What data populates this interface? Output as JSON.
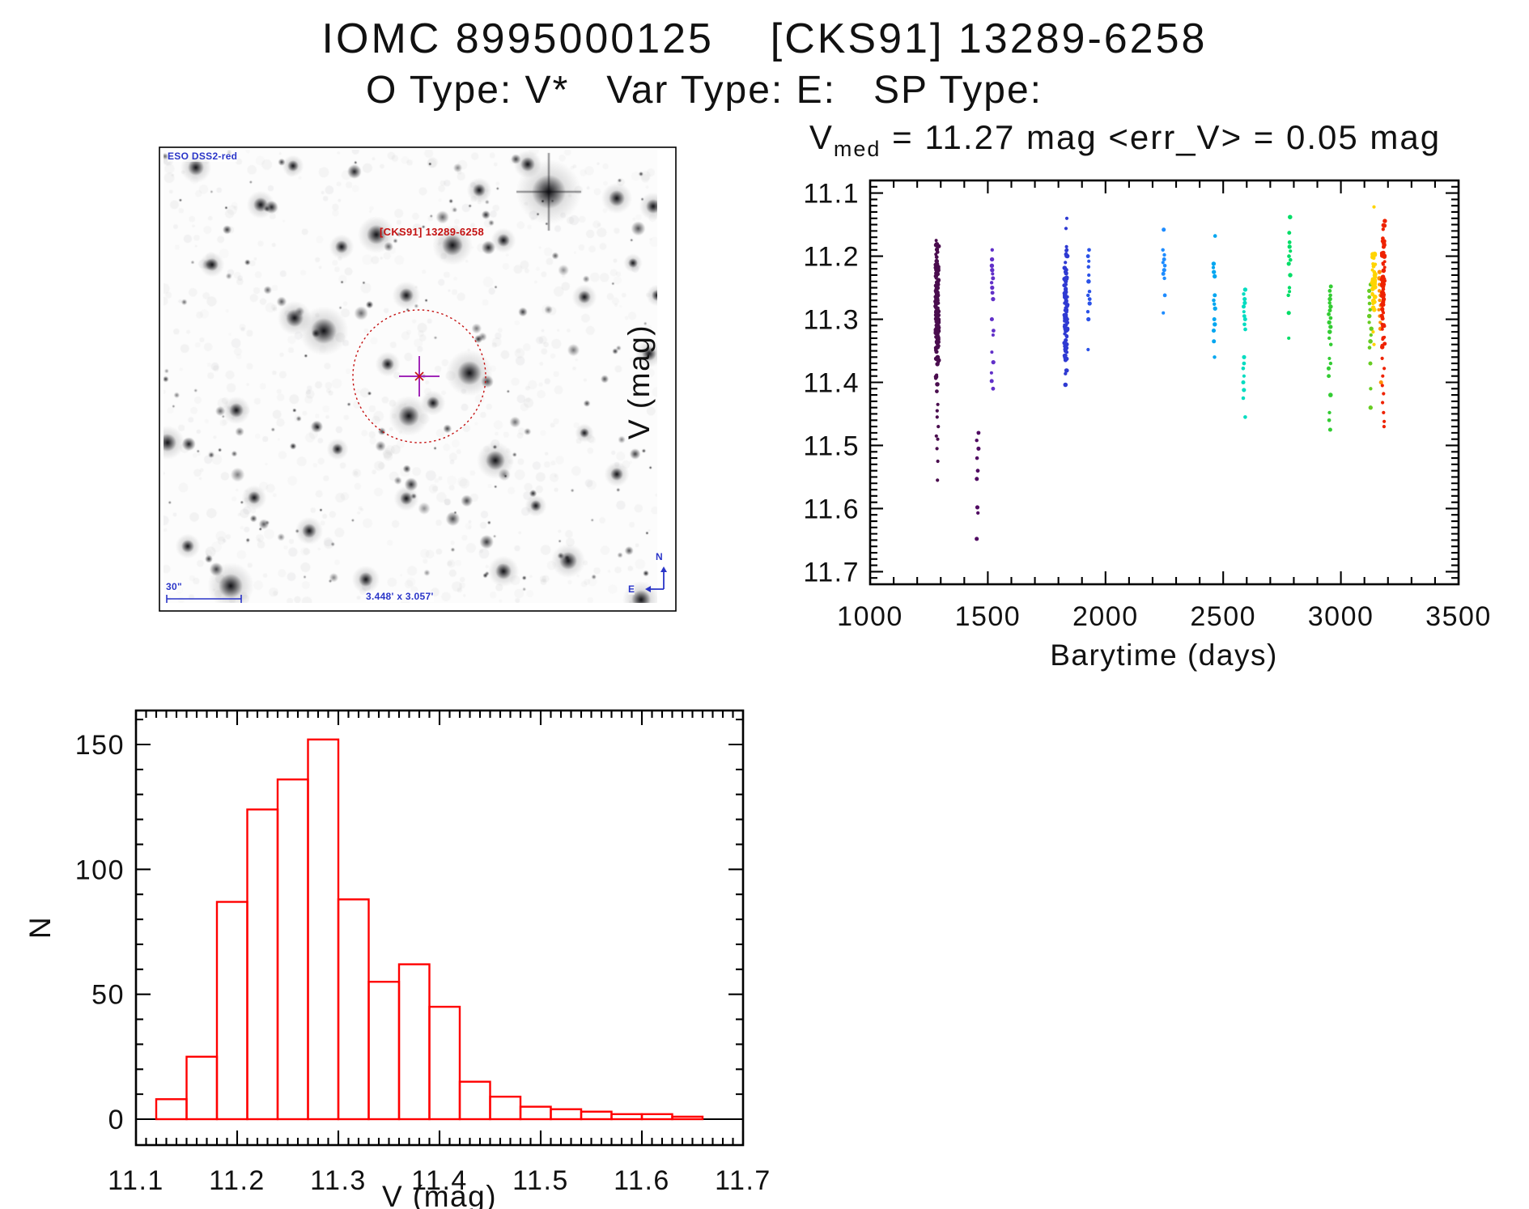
{
  "page": {
    "title": "IOMC 8995000125    [CKS91] 13289-6258",
    "subtitle": "O Type: V*   Var Type: E:   SP Type:"
  },
  "finder": {
    "survey_label": "ESO DSS2-red",
    "target_label": "[CKS91] 13289-6258",
    "scale_label": "30\"",
    "fov_label": "3.448' x 3.057'",
    "compass_north": "N",
    "compass_east": "E",
    "annotation_color": "#2a35c8",
    "marker_color": "#c41111",
    "cross_color": "#a128b8"
  },
  "chart_data": [
    {
      "id": "lightcurve",
      "type": "scatter",
      "title_lead": "V",
      "title_sub": "med",
      "title_rest": "  =  11.27 mag  <err_V>  =  0.05 mag",
      "xlabel": "Barytime (days)",
      "ylabel": "V (mag)",
      "xlim": [
        1000,
        3500
      ],
      "ylim_top_to_bottom": [
        11.08,
        11.72
      ],
      "x_ticks": [
        1000,
        1500,
        2000,
        2500,
        3000,
        3500
      ],
      "x_tick_labels": [
        "1000",
        "1500",
        "2000",
        "2500",
        "3000",
        "3500"
      ],
      "y_ticks": [
        11.1,
        11.2,
        11.3,
        11.4,
        11.5,
        11.6,
        11.7
      ],
      "y_tick_labels": [
        "11.1",
        "11.2",
        "11.3",
        "11.4",
        "11.5",
        "11.6",
        "11.7"
      ],
      "x_minor_step": 100,
      "y_minor_step": 0.01,
      "point_radius": 2.2,
      "clusters": [
        {
          "t": 1285,
          "color": "#4a0d4e",
          "mode": "strip",
          "n": 150,
          "v0": 11.165,
          "v1": 11.425,
          "seed": 11,
          "extra": [
            11.435,
            11.445,
            11.455,
            11.47,
            11.485,
            11.49,
            11.505,
            11.525,
            11.555
          ]
        },
        {
          "t": 1457,
          "color": "#500a62",
          "mode": "list",
          "values": [
            11.48,
            11.492,
            11.505,
            11.52,
            11.54,
            11.553,
            11.598,
            11.607,
            11.648
          ]
        },
        {
          "t": 1520,
          "color": "#6130c8",
          "mode": "list",
          "values": [
            11.19,
            11.205,
            11.215,
            11.222,
            11.228,
            11.235,
            11.242,
            11.25,
            11.258,
            11.268,
            11.3,
            11.318,
            11.325,
            11.352,
            11.368,
            11.385,
            11.398,
            11.41
          ]
        },
        {
          "t": 1832,
          "color": "#2f3ad2",
          "mode": "strip",
          "n": 85,
          "v0": 11.185,
          "v1": 11.42,
          "seed": 22,
          "extra": [
            11.14,
            11.156,
            11.185,
            11.19,
            11.2,
            11.21,
            11.22,
            11.245
          ]
        },
        {
          "t": 1928,
          "color": "#2a52e8",
          "mode": "list",
          "values": [
            11.19,
            11.2,
            11.208,
            11.217,
            11.23,
            11.24,
            11.256,
            11.262,
            11.268,
            11.275,
            11.288,
            11.3,
            11.348
          ]
        },
        {
          "t": 2248,
          "color": "#1e8cff",
          "mode": "list",
          "values": [
            11.158,
            11.19,
            11.198,
            11.205,
            11.21,
            11.215,
            11.222,
            11.228,
            11.235,
            11.262,
            11.29
          ]
        },
        {
          "t": 2461,
          "color": "#00a6f0",
          "mode": "list",
          "values": [
            11.168,
            11.212,
            11.218,
            11.225,
            11.232,
            11.262,
            11.27,
            11.276,
            11.283,
            11.3,
            11.308,
            11.318,
            11.335,
            11.36
          ]
        },
        {
          "t": 2589,
          "color": "#00dcc0",
          "mode": "list",
          "values": [
            11.253,
            11.26,
            11.268,
            11.274,
            11.28,
            11.288,
            11.295,
            11.3,
            11.308,
            11.316,
            11.36,
            11.37,
            11.378,
            11.39,
            11.4,
            11.412,
            11.425,
            11.455
          ]
        },
        {
          "t": 2781,
          "color": "#00dd66",
          "mode": "list",
          "values": [
            11.138,
            11.163,
            11.178,
            11.185,
            11.192,
            11.2,
            11.206,
            11.212,
            11.23,
            11.25,
            11.256,
            11.262,
            11.29,
            11.33
          ]
        },
        {
          "t": 2953,
          "color": "#33cc33",
          "mode": "list",
          "values": [
            11.248,
            11.255,
            11.262,
            11.268,
            11.274,
            11.28,
            11.286,
            11.292,
            11.298,
            11.305,
            11.312,
            11.32,
            11.33,
            11.34,
            11.362,
            11.37,
            11.378,
            11.39,
            11.42,
            11.448,
            11.46,
            11.475
          ]
        },
        {
          "t": 3125,
          "color": "#66cc22",
          "mode": "list",
          "values": [
            11.245,
            11.255,
            11.265,
            11.275,
            11.285,
            11.295,
            11.305,
            11.315,
            11.325,
            11.335,
            11.345,
            11.37,
            11.41,
            11.44
          ]
        },
        {
          "t": 3140,
          "color": "#ffd400",
          "mode": "strip",
          "n": 40,
          "v0": 11.15,
          "v1": 11.3,
          "seed": 33,
          "extra": [
            11.122,
            11.32,
            11.34
          ]
        },
        {
          "t": 3166,
          "color": "#ff9000",
          "mode": "list",
          "values": [
            11.225,
            11.235,
            11.245,
            11.255,
            11.262,
            11.27,
            11.278,
            11.285,
            11.295,
            11.305,
            11.315,
            11.4
          ]
        },
        {
          "t": 3180,
          "color": "#ee2200",
          "mode": "strip",
          "n": 75,
          "v0": 11.125,
          "v1": 11.35,
          "seed": 44,
          "extra": [
            11.362,
            11.378,
            11.39,
            11.405,
            11.418,
            11.432,
            11.448,
            11.462,
            11.47
          ]
        }
      ]
    },
    {
      "id": "histogram",
      "type": "bar",
      "xlabel": "V (mag)",
      "ylabel": "N",
      "xlim": [
        11.1,
        11.7
      ],
      "ylim": [
        -10,
        164
      ],
      "x_ticks": [
        11.1,
        11.2,
        11.3,
        11.4,
        11.5,
        11.6,
        11.7
      ],
      "x_tick_labels": [
        "11.1",
        "11.2",
        "11.3",
        "11.4",
        "11.5",
        "11.6",
        "11.7"
      ],
      "y_ticks": [
        0,
        50,
        100,
        150
      ],
      "y_tick_labels": [
        "0",
        "50",
        "100",
        "150"
      ],
      "x_minor_step": 0.01,
      "y_minor_step": 10,
      "bar_color": "#ff0000",
      "bin_width": 0.03,
      "bins": [
        {
          "left": 11.12,
          "count": 8
        },
        {
          "left": 11.15,
          "count": 25
        },
        {
          "left": 11.18,
          "count": 87
        },
        {
          "left": 11.21,
          "count": 124
        },
        {
          "left": 11.24,
          "count": 136
        },
        {
          "left": 11.27,
          "count": 152
        },
        {
          "left": 11.3,
          "count": 88
        },
        {
          "left": 11.33,
          "count": 55
        },
        {
          "left": 11.36,
          "count": 62
        },
        {
          "left": 11.39,
          "count": 45
        },
        {
          "left": 11.42,
          "count": 15
        },
        {
          "left": 11.45,
          "count": 9
        },
        {
          "left": 11.48,
          "count": 5
        },
        {
          "left": 11.51,
          "count": 4
        },
        {
          "left": 11.54,
          "count": 3
        },
        {
          "left": 11.57,
          "count": 2
        },
        {
          "left": 11.6,
          "count": 2
        },
        {
          "left": 11.63,
          "count": 1
        }
      ]
    }
  ]
}
